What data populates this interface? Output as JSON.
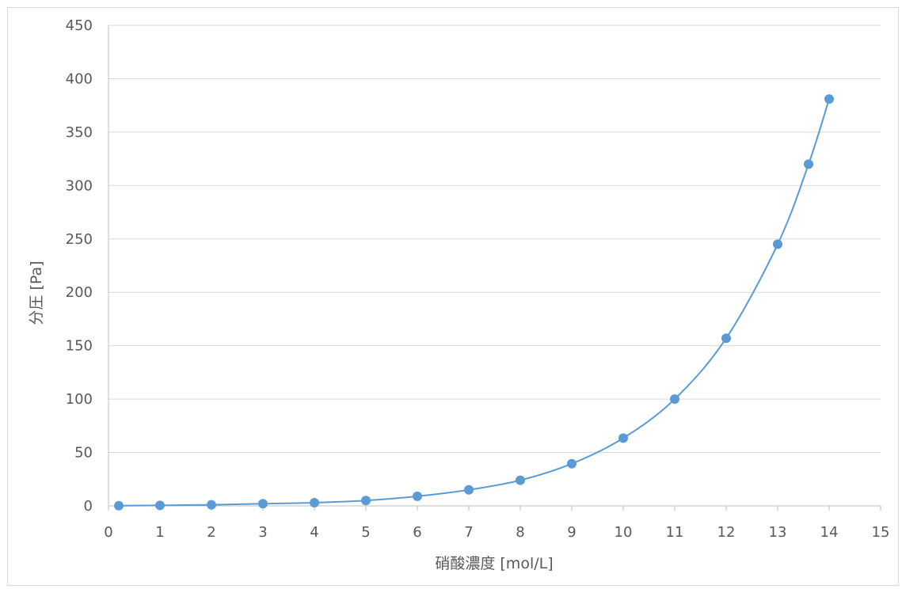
{
  "chart_data": {
    "type": "scatter",
    "title": "",
    "xlabel": "硝酸濃度 [mol/L]",
    "ylabel": "分圧 [Pa]",
    "xlim": [
      0,
      15
    ],
    "ylim": [
      0,
      450
    ],
    "xticks": [
      "0",
      "1",
      "2",
      "3",
      "4",
      "5",
      "6",
      "7",
      "8",
      "9",
      "10",
      "11",
      "12",
      "13",
      "14",
      "15"
    ],
    "yticks": [
      "0",
      "50",
      "100",
      "150",
      "200",
      "250",
      "300",
      "350",
      "400",
      "450"
    ],
    "grid": "horizontal",
    "legend": "none",
    "colors": {
      "series": "#5b9bd5",
      "grid": "#d9d9d9",
      "axis": "#bfbfbf",
      "text": "#595959"
    },
    "series": [
      {
        "x": [
          0.2,
          1,
          2,
          3,
          4,
          5,
          6,
          7,
          8,
          9,
          10,
          11,
          12,
          13,
          13.6,
          14
        ],
        "y": [
          0.2,
          0.5,
          1,
          2,
          3,
          5,
          9,
          15,
          24,
          39.5,
          63.5,
          100,
          157,
          245,
          320,
          381
        ]
      }
    ]
  }
}
